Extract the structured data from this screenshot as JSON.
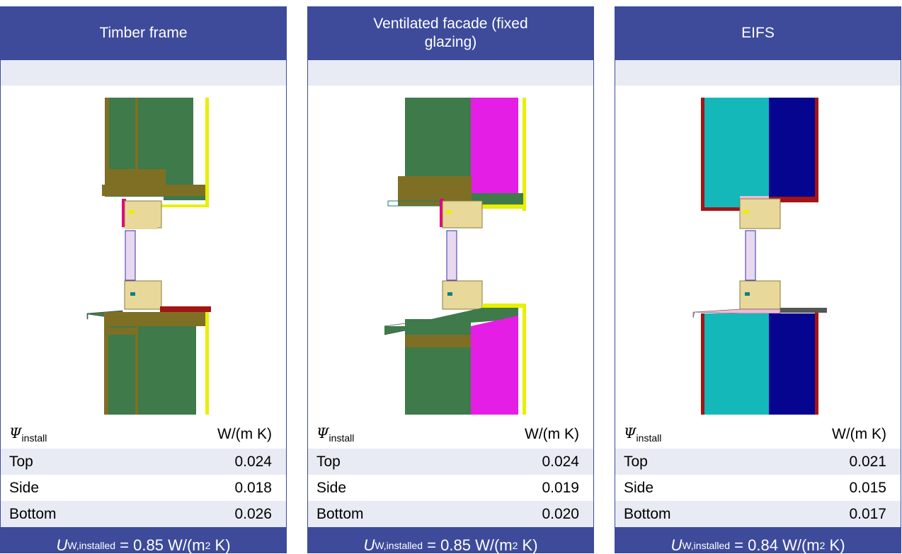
{
  "panels": [
    {
      "title": "Timber frame",
      "psi_unit": "W/(m K)",
      "rows": [
        {
          "label": "Top",
          "value": "0.024"
        },
        {
          "label": "Side",
          "value": "0.018"
        },
        {
          "label": "Bottom",
          "value": "0.026"
        }
      ],
      "uw_value": "0.85"
    },
    {
      "title": "Ventilated facade (fixed glazing)",
      "psi_unit": "W/(m K)",
      "rows": [
        {
          "label": "Top",
          "value": "0.024"
        },
        {
          "label": "Side",
          "value": "0.019"
        },
        {
          "label": "Bottom",
          "value": "0.020"
        }
      ],
      "uw_value": "0.85"
    },
    {
      "title": "EIFS",
      "psi_unit": "W/(m K)",
      "rows": [
        {
          "label": "Top",
          "value": "0.021"
        },
        {
          "label": "Side",
          "value": "0.015"
        },
        {
          "label": "Bottom",
          "value": "0.017"
        }
      ],
      "uw_value": "0.84"
    }
  ],
  "symbols": {
    "psi": "Ψ",
    "psi_sub": "install",
    "u": "U",
    "u_sub": "W,installed",
    "eq": " = ",
    "unit_pre": " W/(m",
    "unit_sup": "2",
    "unit_post": " K)"
  },
  "colors": {
    "header": "#3d4b9a",
    "band": "#e8ebf3",
    "timber_green": "#3e7a4a",
    "timber_olive": "#7f6f25",
    "membrane_yellow": "#e8f000",
    "insulation_magenta": "#e51ee5",
    "eifs_cyan": "#14b8b8",
    "eifs_navy": "#05058f",
    "render_red": "#a31414",
    "frame_wood": "#e8d89a",
    "glass": "#e8d8f0"
  }
}
